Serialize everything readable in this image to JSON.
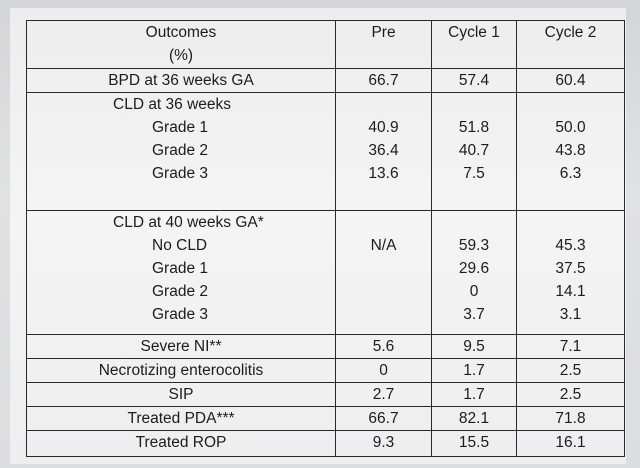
{
  "header": {
    "outcomes_line1": "Outcomes",
    "outcomes_line2": "(%)",
    "pre": "Pre",
    "cycle1": "Cycle 1",
    "cycle2": "Cycle 2"
  },
  "rows": {
    "bpd": {
      "label": "BPD at 36 weeks GA",
      "pre": "66.7",
      "c1": "57.4",
      "c2": "60.4"
    },
    "cld36": {
      "title": "CLD at 36 weeks",
      "grades": [
        {
          "label": "Grade 1",
          "pre": "40.9",
          "c1": "51.8",
          "c2": "50.0"
        },
        {
          "label": "Grade 2",
          "pre": "36.4",
          "c1": "40.7",
          "c2": "43.8"
        },
        {
          "label": "Grade 3",
          "pre": "13.6",
          "c1": "7.5",
          "c2": "6.3"
        }
      ]
    },
    "cld40": {
      "title": "CLD at 40 weeks GA*",
      "no_cld": {
        "label": "No CLD",
        "pre": "N/A",
        "c1": "59.3",
        "c2": "45.3"
      },
      "grades": [
        {
          "label": "Grade 1",
          "c1": "29.6",
          "c2": "37.5"
        },
        {
          "label": "Grade 2",
          "c1": "0",
          "c2": "14.1"
        },
        {
          "label": "Grade 3",
          "c1": "3.7",
          "c2": "3.1"
        }
      ]
    },
    "severe_ni": {
      "label": "Severe NI**",
      "pre": "5.6",
      "c1": "9.5",
      "c2": "7.1"
    },
    "nec": {
      "label": "Necrotizing enterocolitis",
      "pre": "0",
      "c1": "1.7",
      "c2": "2.5"
    },
    "sip": {
      "label": "SIP",
      "pre": "2.7",
      "c1": "1.7",
      "c2": "2.5"
    },
    "pda": {
      "label": "Treated PDA***",
      "pre": "66.7",
      "c1": "82.1",
      "c2": "71.8"
    },
    "rop": {
      "label": "Treated ROP",
      "pre": "9.3",
      "c1": "15.5",
      "c2": "16.1"
    }
  }
}
